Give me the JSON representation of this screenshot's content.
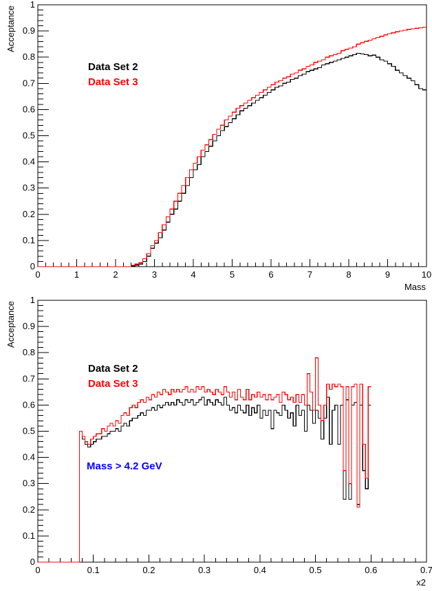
{
  "chart_data": [
    {
      "type": "line",
      "style": "step-histogram",
      "xlabel": "Mass",
      "ylabel": "Acceptance",
      "xlim": [
        0,
        10
      ],
      "ylim": [
        0,
        1
      ],
      "xticks": [
        0,
        1,
        2,
        3,
        4,
        5,
        6,
        7,
        8,
        9,
        10
      ],
      "yticks": [
        0,
        0.1,
        0.2,
        0.3,
        0.4,
        0.5,
        0.6,
        0.7,
        0.8,
        0.9,
        1
      ],
      "ytick_labels": [
        "0",
        "0.1",
        "0.2",
        "0.3",
        "0.4",
        "0.5",
        "0.6",
        "0.7",
        "0.8",
        "0.9",
        "1"
      ],
      "legend": {
        "placement": "upper-left"
      },
      "annotation": "",
      "bin_width": 0.1,
      "x_start": 0,
      "series": [
        {
          "name": "Data Set 2",
          "color": "#000000",
          "values": [
            0,
            0,
            0,
            0,
            0,
            0,
            0,
            0,
            0,
            0,
            0,
            0,
            0,
            0,
            0,
            0,
            0,
            0,
            0,
            0,
            0,
            0,
            0,
            0,
            0.003,
            0.006,
            0.01,
            0.02,
            0.04,
            0.07,
            0.09,
            0.11,
            0.14,
            0.17,
            0.2,
            0.22,
            0.25,
            0.28,
            0.31,
            0.34,
            0.37,
            0.39,
            0.42,
            0.44,
            0.46,
            0.48,
            0.5,
            0.52,
            0.535,
            0.55,
            0.565,
            0.58,
            0.595,
            0.605,
            0.615,
            0.625,
            0.635,
            0.645,
            0.655,
            0.665,
            0.675,
            0.685,
            0.69,
            0.7,
            0.705,
            0.715,
            0.72,
            0.73,
            0.735,
            0.745,
            0.75,
            0.755,
            0.76,
            0.77,
            0.775,
            0.78,
            0.785,
            0.79,
            0.795,
            0.8,
            0.805,
            0.81,
            0.815,
            0.812,
            0.81,
            0.805,
            0.808,
            0.8,
            0.79,
            0.785,
            0.775,
            0.765,
            0.75,
            0.74,
            0.73,
            0.72,
            0.71,
            0.695,
            0.68,
            0.675
          ]
        },
        {
          "name": "Data Set 3",
          "color": "#ff0000",
          "values": [
            0,
            0,
            0,
            0,
            0,
            0,
            0,
            0,
            0,
            0,
            0,
            0,
            0,
            0,
            0,
            0,
            0,
            0,
            0,
            0,
            0,
            0,
            0,
            0,
            0.005,
            0.01,
            0.015,
            0.03,
            0.05,
            0.08,
            0.1,
            0.13,
            0.16,
            0.19,
            0.22,
            0.25,
            0.28,
            0.31,
            0.34,
            0.37,
            0.395,
            0.42,
            0.445,
            0.465,
            0.485,
            0.505,
            0.525,
            0.54,
            0.56,
            0.575,
            0.59,
            0.605,
            0.615,
            0.625,
            0.635,
            0.645,
            0.655,
            0.665,
            0.675,
            0.685,
            0.695,
            0.705,
            0.71,
            0.72,
            0.725,
            0.735,
            0.74,
            0.75,
            0.755,
            0.765,
            0.77,
            0.78,
            0.785,
            0.79,
            0.8,
            0.805,
            0.81,
            0.815,
            0.825,
            0.83,
            0.835,
            0.84,
            0.85,
            0.855,
            0.86,
            0.865,
            0.87,
            0.875,
            0.88,
            0.885,
            0.89,
            0.893,
            0.897,
            0.9,
            0.903,
            0.906,
            0.908,
            0.91,
            0.912,
            0.915
          ]
        }
      ]
    },
    {
      "type": "line",
      "style": "step-histogram",
      "xlabel": "x2",
      "ylabel": "Acceptance",
      "xlim": [
        0,
        0.7
      ],
      "ylim": [
        0,
        1
      ],
      "xticks": [
        0,
        0.1,
        0.2,
        0.3,
        0.4,
        0.5,
        0.6,
        0.7
      ],
      "xtick_labels": [
        "0",
        "0.1",
        "0.2",
        "0.3",
        "0.4",
        "0.5",
        "0.6",
        "0.7"
      ],
      "yticks": [
        0,
        0.1,
        0.2,
        0.3,
        0.4,
        0.5,
        0.6,
        0.7,
        0.8,
        0.9,
        1
      ],
      "ytick_labels": [
        "0",
        "0.1",
        "0.2",
        "0.3",
        "0.4",
        "0.5",
        "0.6",
        "0.7",
        "0.8",
        "0.9",
        "1"
      ],
      "legend": {
        "placement": "upper-left"
      },
      "annotation": "Mass > 4.2 GeV",
      "annotation_color": "#0000ff",
      "bin_width": 0.005,
      "x_start": 0,
      "series": [
        {
          "name": "Data Set 2",
          "color": "#000000",
          "values": [
            0,
            0,
            0,
            0,
            0,
            0,
            0,
            0,
            0,
            0,
            0,
            0,
            0,
            0,
            0,
            0.5,
            0.47,
            0.45,
            0.44,
            0.45,
            0.46,
            0.47,
            0.47,
            0.48,
            0.48,
            0.49,
            0.5,
            0.5,
            0.51,
            0.5,
            0.52,
            0.53,
            0.52,
            0.54,
            0.55,
            0.55,
            0.56,
            0.57,
            0.56,
            0.58,
            0.58,
            0.59,
            0.58,
            0.6,
            0.59,
            0.6,
            0.61,
            0.6,
            0.61,
            0.6,
            0.62,
            0.61,
            0.6,
            0.62,
            0.61,
            0.62,
            0.6,
            0.61,
            0.62,
            0.63,
            0.6,
            0.62,
            0.61,
            0.6,
            0.62,
            0.61,
            0.6,
            0.63,
            0.6,
            0.58,
            0.59,
            0.57,
            0.6,
            0.58,
            0.57,
            0.6,
            0.56,
            0.59,
            0.57,
            0.6,
            0.55,
            0.58,
            0.56,
            0.58,
            0.51,
            0.58,
            0.57,
            0.56,
            0.6,
            0.58,
            0.55,
            0.57,
            0.52,
            0.6,
            0.56,
            0.58,
            0.5,
            0.6,
            0.58,
            0.53,
            0.58,
            0.55,
            0.47,
            0.55,
            0.63,
            0.45,
            0.58,
            0.6,
            0.45,
            0.6,
            0.24,
            0.62,
            0.24,
            0.6,
            0.61,
            0.22,
            0.6,
            0.35,
            0.28,
            0.6
          ]
        },
        {
          "name": "Data Set 3",
          "color": "#ff0000",
          "values": [
            0,
            0,
            0,
            0,
            0,
            0,
            0,
            0,
            0,
            0,
            0,
            0,
            0,
            0,
            0,
            0.5,
            0.48,
            0.46,
            0.45,
            0.47,
            0.48,
            0.49,
            0.49,
            0.51,
            0.5,
            0.52,
            0.53,
            0.52,
            0.54,
            0.53,
            0.56,
            0.57,
            0.56,
            0.59,
            0.6,
            0.59,
            0.61,
            0.62,
            0.61,
            0.63,
            0.62,
            0.64,
            0.63,
            0.65,
            0.64,
            0.66,
            0.65,
            0.64,
            0.66,
            0.65,
            0.66,
            0.65,
            0.66,
            0.67,
            0.65,
            0.66,
            0.65,
            0.67,
            0.66,
            0.67,
            0.65,
            0.66,
            0.65,
            0.64,
            0.66,
            0.65,
            0.64,
            0.67,
            0.65,
            0.63,
            0.65,
            0.62,
            0.66,
            0.63,
            0.62,
            0.66,
            0.62,
            0.64,
            0.63,
            0.65,
            0.63,
            0.64,
            0.62,
            0.64,
            0.62,
            0.63,
            0.64,
            0.61,
            0.65,
            0.64,
            0.62,
            0.63,
            0.61,
            0.64,
            0.61,
            0.64,
            0.6,
            0.72,
            0.65,
            0.58,
            0.78,
            0.6,
            0.54,
            0.6,
            0.68,
            0.66,
            0.68,
            0.67,
            0.68,
            0.67,
            0.35,
            0.67,
            0.3,
            0.67,
            0.68,
            0.21,
            0.68,
            0.45,
            0.32,
            0.67
          ]
        }
      ]
    }
  ]
}
